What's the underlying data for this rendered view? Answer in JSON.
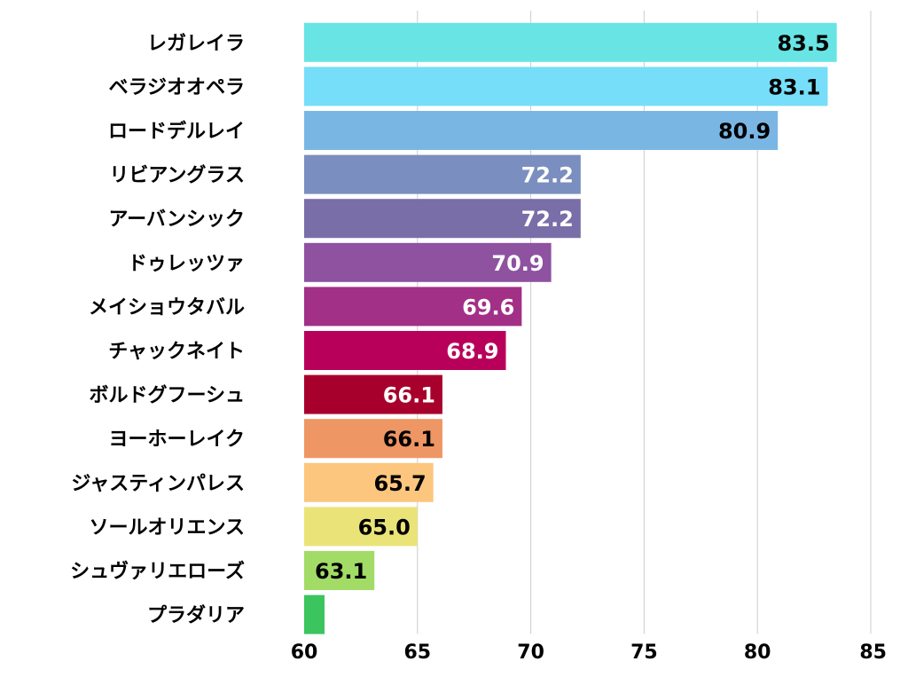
{
  "chart_data": {
    "type": "bar",
    "orientation": "horizontal",
    "title": "",
    "xlabel": "",
    "ylabel": "",
    "xlim": [
      60,
      85
    ],
    "xticks": [
      "60",
      "65",
      "70",
      "75",
      "80",
      "85"
    ],
    "grid": true,
    "legend": "none",
    "categories": [
      "レガレイラ",
      "ベラジオオペラ",
      "ロードデルレイ",
      "リビアングラス",
      "アーバンシック",
      "ドゥレッツァ",
      "メイショウタバル",
      "チャックネイト",
      "ボルドグフーシュ",
      "ヨーホーレイク",
      "ジャスティンパレス",
      "ソールオリエンス",
      "シュヴァリエローズ",
      "プラダリア"
    ],
    "values": [
      83.5,
      83.1,
      80.9,
      72.2,
      72.2,
      70.9,
      69.6,
      68.9,
      66.1,
      66.1,
      65.7,
      65.0,
      63.1,
      60.9
    ],
    "value_labels": [
      "83.5",
      "83.1",
      "80.9",
      "72.2",
      "72.2",
      "70.9",
      "69.6",
      "68.9",
      "66.1",
      "66.1",
      "65.7",
      "65.0",
      "63.1",
      ""
    ],
    "colors": [
      "#68e4e4",
      "#76def8",
      "#7ab6e4",
      "#7b8ec0",
      "#7a6ea8",
      "#8e52a0",
      "#a23086",
      "#b8005a",
      "#a8002c",
      "#ee9664",
      "#fcc67e",
      "#eae478",
      "#a2dc66",
      "#3cc45e"
    ],
    "label_colors": [
      "#000000",
      "#000000",
      "#000000",
      "#ffffff",
      "#ffffff",
      "#ffffff",
      "#ffffff",
      "#ffffff",
      "#ffffff",
      "#000000",
      "#000000",
      "#000000",
      "#000000",
      "#000000"
    ]
  }
}
